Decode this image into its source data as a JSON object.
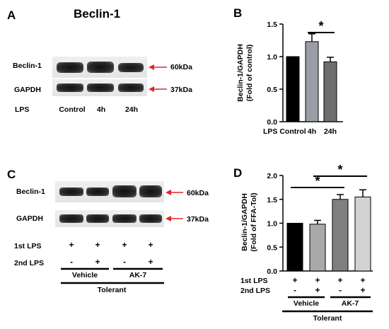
{
  "panelA": {
    "letter": "A",
    "title": "Beclin-1",
    "row_labels": [
      "Beclin-1",
      "GAPDH"
    ],
    "lps_label": "LPS",
    "lanes": [
      "Control",
      "4h",
      "24h"
    ],
    "markers": [
      "60kDa",
      "37kDa"
    ]
  },
  "panelC": {
    "letter": "C",
    "row_labels": [
      "Beclin-1",
      "GAPDH"
    ],
    "markers": [
      "60kDa",
      "37kDa"
    ],
    "first_lps_label": "1st LPS",
    "second_lps_label": "2nd LPS",
    "first_lps": [
      "+",
      "+",
      "+",
      "+"
    ],
    "second_lps": [
      "-",
      "+",
      "-",
      "+"
    ],
    "groups": [
      "Vehicle",
      "AK-7"
    ],
    "tolerant_label": "Tolerant"
  },
  "chart_data": [
    {
      "panel": "B",
      "type": "bar",
      "title": "",
      "xlabel": "LPS",
      "ylabel_lines": [
        "Beclin-1/GAPDH",
        "(Fold of control)"
      ],
      "categories": [
        "Control",
        "4h",
        "24h"
      ],
      "values": [
        1.0,
        1.23,
        0.92
      ],
      "errors": [
        0,
        0.12,
        0.07
      ],
      "bar_colors": [
        "#000000",
        "#9a9da4",
        "#6e6e6e"
      ],
      "ylim": [
        0,
        1.5
      ],
      "yticks": [
        "0.0",
        "0.5",
        "1.0",
        "1.5"
      ],
      "significance": [
        {
          "from": 1,
          "to": 2,
          "label": "*"
        }
      ]
    },
    {
      "panel": "D",
      "type": "bar",
      "title": "",
      "ylabel_lines": [
        "Beclin-1/GAPDH",
        "(Fold of FFA-Tol)"
      ],
      "values": [
        1.0,
        0.98,
        1.5,
        1.55
      ],
      "errors": [
        0,
        0.08,
        0.1,
        0.15
      ],
      "bar_colors": [
        "#000000",
        "#a9a9a9",
        "#808080",
        "#d3d3d3"
      ],
      "ylim": [
        0,
        2.0
      ],
      "yticks": [
        "0.0",
        "0.5",
        "1.0",
        "1.5",
        "2.0"
      ],
      "row_labels": [
        "1st LPS",
        "2nd LPS"
      ],
      "first_lps": [
        "+",
        "+",
        "+",
        "+"
      ],
      "second_lps": [
        "-",
        "+",
        "-",
        "+"
      ],
      "groups": [
        "Vehicle",
        "AK-7"
      ],
      "tolerant_label": "Tolerant",
      "significance": [
        {
          "from": 0,
          "to": 2,
          "label": "*"
        },
        {
          "from": 1,
          "to": 3,
          "label": "*"
        }
      ]
    }
  ]
}
